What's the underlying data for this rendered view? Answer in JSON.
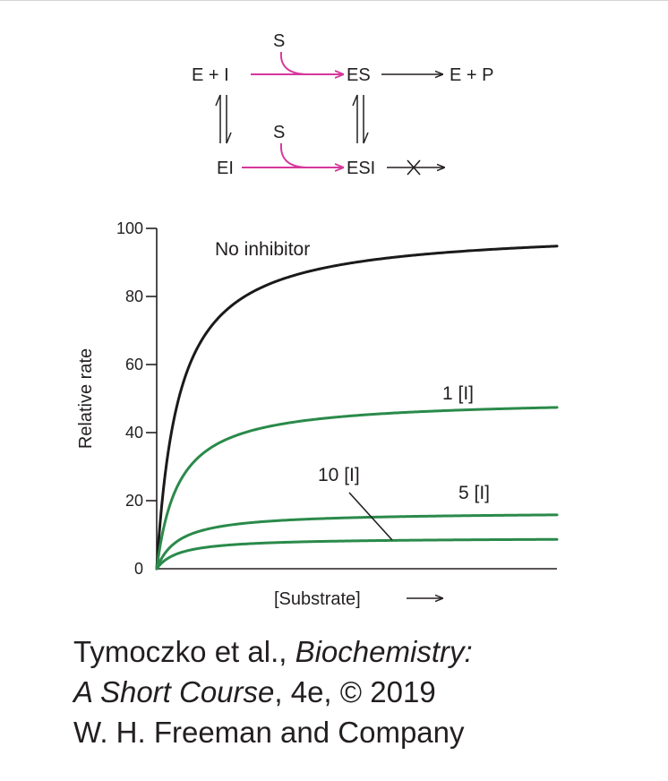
{
  "scheme": {
    "e_plus_i": "E + I",
    "es": "ES",
    "e_plus_p": "E + P",
    "ei": "EI",
    "esi": "ESI",
    "substrate_top": "S",
    "substrate_bottom": "S"
  },
  "chart_data": {
    "type": "line",
    "xlabel": "[Substrate]",
    "ylabel": "Relative rate",
    "ylim": [
      0,
      100
    ],
    "yticks": [
      "0",
      "20",
      "40",
      "60",
      "80",
      "100"
    ],
    "x_relative_range": [
      0,
      100
    ],
    "x_axis_numbers_shown": false,
    "series": [
      {
        "name": "No inhibitor",
        "vmax": 100,
        "km": 5.5,
        "color": "#1a1a1a"
      },
      {
        "name": "1 [I]",
        "vmax": 50,
        "km": 5.5,
        "color": "#2a8a4a"
      },
      {
        "name": "5 [I]",
        "vmax": 16.7,
        "km": 5.5,
        "color": "#2a8a4a"
      },
      {
        "name": "10 [I]",
        "vmax": 9.1,
        "km": 5.5,
        "color": "#2a8a4a"
      }
    ],
    "grid": false,
    "legend": "labels placed on curves"
  },
  "caption": {
    "line1_plain": "Tymoczko et al., ",
    "line1_italic": "Biochemistry:",
    "line2_italic": "A Short Course",
    "line2_plain": ", 4e, © 2019",
    "line3": "W. H. Freeman and Company"
  },
  "colors": {
    "magenta_arrow": "#d6389c",
    "ink": "#231f20"
  }
}
